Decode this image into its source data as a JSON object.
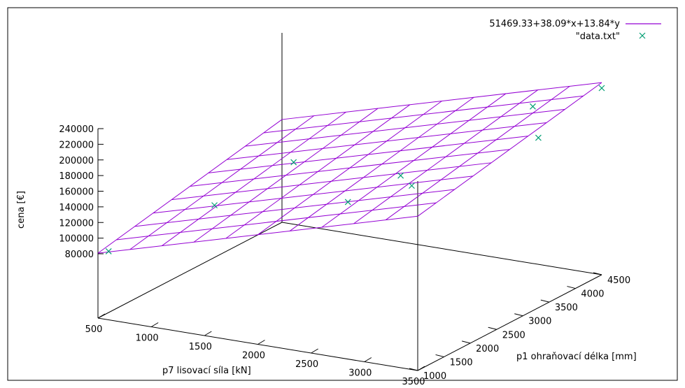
{
  "chart_data": {
    "type": "scatter",
    "title": "",
    "xlabel": "p7 lisovací síla [kN]",
    "ylabel": "p1 ohraňovací délka [mm]",
    "zlabel": "cena [€]",
    "xlim": [
      500,
      3500
    ],
    "ylim": [
      1000,
      4500
    ],
    "zlim": [
      80000,
      240000
    ],
    "x_ticks": [
      "500",
      "1000",
      "1500",
      "2000",
      "2500",
      "3000",
      "3500"
    ],
    "y_ticks": [
      "1000",
      "1500",
      "2000",
      "2500",
      "3000",
      "3500",
      "4000",
      "4500"
    ],
    "z_ticks": [
      "80000",
      "100000",
      "120000",
      "140000",
      "160000",
      "180000",
      "200000",
      "220000",
      "240000"
    ],
    "legend_position": "top-right",
    "series": [
      {
        "name": "51469.33+38.09*x+13.84*y",
        "kind": "surface",
        "color": "#9400d3",
        "intercept": 51469.33,
        "coef_x": 38.09,
        "coef_y": 13.84
      },
      {
        "name": "\"data.txt\"",
        "kind": "points",
        "color": "#009e73",
        "points": [
          {
            "x": 600,
            "y": 1000,
            "z": 89000
          },
          {
            "x": 1100,
            "y": 2000,
            "z": 124000
          },
          {
            "x": 1300,
            "y": 3100,
            "z": 145000
          },
          {
            "x": 2500,
            "y": 1700,
            "z": 170000
          },
          {
            "x": 2600,
            "y": 2500,
            "z": 178000
          },
          {
            "x": 3000,
            "y": 1900,
            "z": 195000
          },
          {
            "x": 3100,
            "y": 4000,
            "z": 225000
          },
          {
            "x": 3300,
            "y": 3700,
            "z": 200000
          },
          {
            "x": 3500,
            "y": 4500,
            "z": 240000
          }
        ]
      }
    ]
  }
}
